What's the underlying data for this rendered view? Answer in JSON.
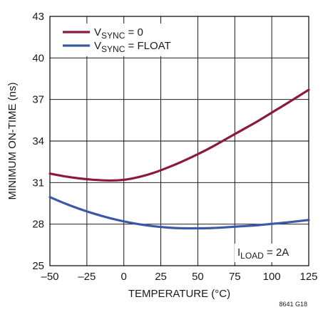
{
  "chart_data": {
    "type": "line",
    "xlabel": "TEMPERATURE (°C)",
    "ylabel": "MINIMUM ON-TIME (ns)",
    "xlim": [
      -50,
      125
    ],
    "ylim": [
      25,
      43
    ],
    "xticks": [
      -50,
      -25,
      0,
      25,
      50,
      75,
      100,
      125
    ],
    "xtick_labels": [
      "–50",
      "–25",
      "0",
      "25",
      "50",
      "75",
      "100",
      "125"
    ],
    "yticks": [
      25,
      28,
      31,
      34,
      37,
      40,
      43
    ],
    "ytick_labels": [
      "25",
      "28",
      "31",
      "34",
      "37",
      "40",
      "43"
    ],
    "grid": true,
    "legend_position": "top-left",
    "series": [
      {
        "name": "VSYNC = 0",
        "name_base": "V",
        "name_sub": "SYNC",
        "name_rest": " = 0",
        "color": "#8b1a3a",
        "x": [
          -50,
          -40,
          -30,
          -20,
          -10,
          0,
          10,
          20,
          30,
          40,
          50,
          60,
          70,
          80,
          90,
          100,
          110,
          125
        ],
        "y": [
          31.65,
          31.45,
          31.3,
          31.2,
          31.15,
          31.2,
          31.4,
          31.7,
          32.1,
          32.55,
          33.05,
          33.6,
          34.2,
          34.8,
          35.4,
          36.05,
          36.7,
          37.7
        ]
      },
      {
        "name": "VSYNC = FLOAT",
        "name_base": "V",
        "name_sub": "SYNC",
        "name_rest": " = FLOAT",
        "color": "#3a5aa8",
        "x": [
          -50,
          -40,
          -30,
          -20,
          -10,
          0,
          10,
          20,
          30,
          40,
          50,
          60,
          70,
          80,
          90,
          100,
          110,
          125
        ],
        "y": [
          29.95,
          29.5,
          29.1,
          28.75,
          28.45,
          28.2,
          28.0,
          27.85,
          27.75,
          27.7,
          27.7,
          27.72,
          27.78,
          27.85,
          27.92,
          28.02,
          28.12,
          28.3
        ]
      }
    ],
    "annotation": {
      "base": "I",
      "sub": "LOAD",
      "rest": " = 2A",
      "position": "bottom-right"
    },
    "figure_id": "8641 G18"
  }
}
